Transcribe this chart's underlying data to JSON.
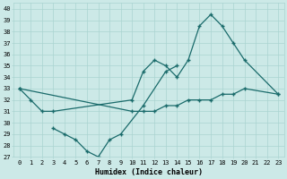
{
  "xlabel": "Humidex (Indice chaleur)",
  "bg_color": "#cce9e7",
  "grid_color": "#aad4d1",
  "line_color": "#1a6b6b",
  "ylim": [
    27,
    40.5
  ],
  "yticks": [
    27,
    28,
    29,
    30,
    31,
    32,
    33,
    34,
    35,
    36,
    37,
    38,
    39,
    40
  ],
  "xlim": [
    -0.5,
    23.5
  ],
  "xticks": [
    0,
    1,
    2,
    3,
    4,
    5,
    6,
    7,
    8,
    9,
    10,
    11,
    12,
    13,
    14,
    15,
    16,
    17,
    18,
    19,
    20,
    21,
    22,
    23
  ],
  "line1_x": [
    0,
    1,
    2,
    3,
    10,
    11,
    12,
    13,
    14,
    15,
    16,
    17,
    18,
    19,
    20,
    23
  ],
  "line1_y": [
    33,
    32,
    31,
    31,
    32,
    34.5,
    35.5,
    35,
    34,
    35.5,
    38.5,
    39.5,
    38.5,
    37,
    35.5,
    32.5
  ],
  "line2_x": [
    3,
    4,
    5,
    6,
    7,
    8,
    9,
    11,
    13,
    14
  ],
  "line2_y": [
    29.5,
    29,
    28.5,
    27.5,
    27,
    28.5,
    29,
    31.5,
    34.5,
    35
  ],
  "line3_x": [
    0,
    10,
    11,
    12,
    13,
    14,
    15,
    16,
    17,
    18,
    19,
    20,
    23
  ],
  "line3_y": [
    33,
    31,
    31,
    31,
    31.5,
    31.5,
    32,
    32,
    32,
    32.5,
    32.5,
    33,
    32.5
  ]
}
